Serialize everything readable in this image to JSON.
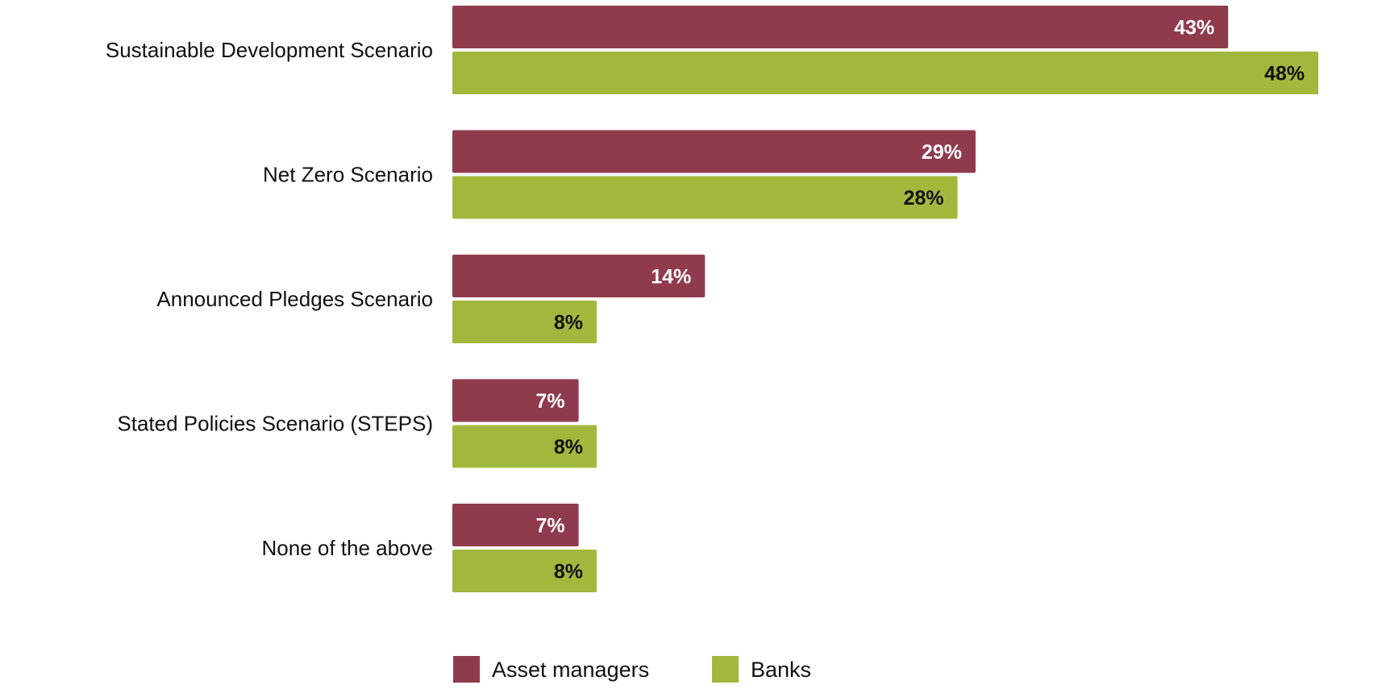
{
  "chart_data": {
    "type": "bar",
    "orientation": "horizontal",
    "categories": [
      "Sustainable Development Scenario",
      "Net Zero Scenario",
      "Announced Pledges Scenario",
      "Stated Policies Scenario (STEPS)",
      "None of the above"
    ],
    "series": [
      {
        "name": "Asset managers",
        "values": [
          43,
          29,
          14,
          7,
          7
        ],
        "color": "#8f3b4d",
        "label_color": "#ffffff"
      },
      {
        "name": "Banks",
        "values": [
          48,
          28,
          8,
          8,
          8
        ],
        "color": "#a2b83d",
        "label_color": "#111111"
      }
    ],
    "value_suffix": "%",
    "xlim": [
      0,
      48
    ],
    "grid": false,
    "legend_position": "bottom"
  }
}
